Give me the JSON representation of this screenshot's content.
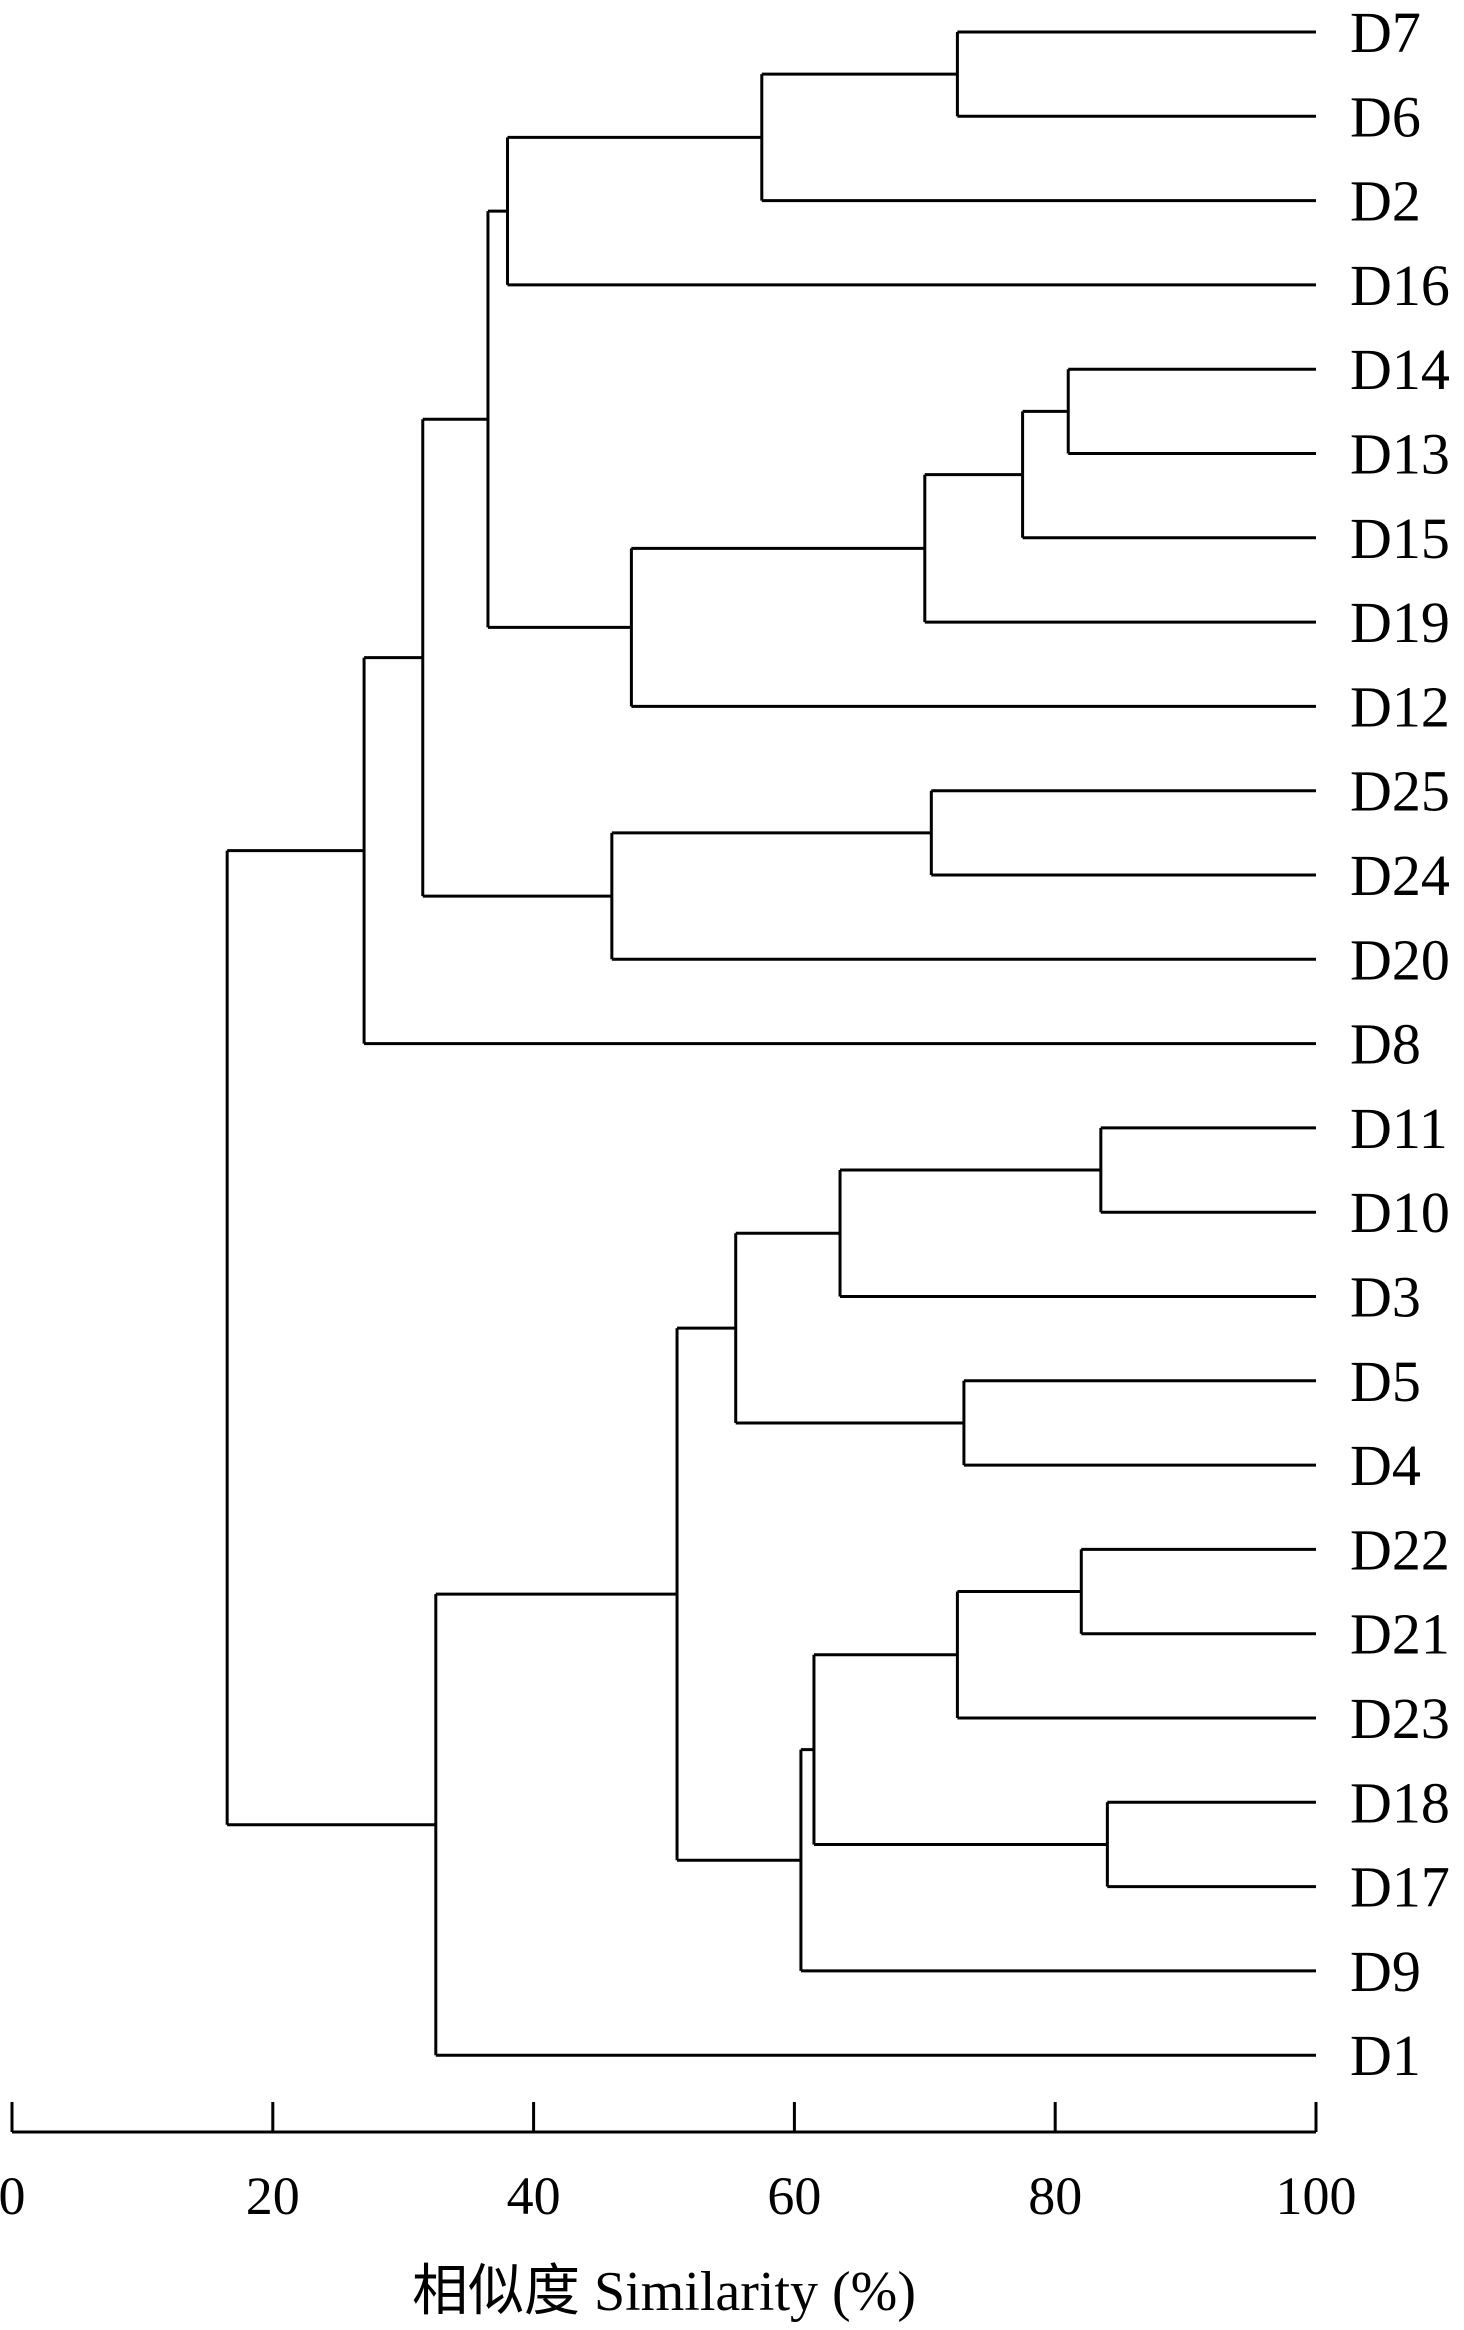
{
  "chart_data": {
    "type": "dendrogram",
    "orientation": "horizontal",
    "leaves": [
      "D7",
      "D6",
      "D2",
      "D16",
      "D14",
      "D13",
      "D15",
      "D19",
      "D12",
      "D25",
      "D24",
      "D20",
      "D8",
      "D11",
      "D10",
      "D3",
      "D5",
      "D4",
      "D22",
      "D21",
      "D23",
      "D18",
      "D17",
      "D9",
      "D1"
    ],
    "merges": [
      {
        "id": "m1",
        "children": [
          "D7",
          "D6"
        ],
        "similarity": 72.5
      },
      {
        "id": "m2",
        "children": [
          "m1",
          "D2"
        ],
        "similarity": 57.5
      },
      {
        "id": "m3",
        "children": [
          "m2",
          "D16"
        ],
        "similarity": 38
      },
      {
        "id": "m4",
        "children": [
          "D14",
          "D13"
        ],
        "similarity": 81
      },
      {
        "id": "m5",
        "children": [
          "m4",
          "D15"
        ],
        "similarity": 77.5
      },
      {
        "id": "m6",
        "children": [
          "m5",
          "D19"
        ],
        "similarity": 70
      },
      {
        "id": "m7",
        "children": [
          "m6",
          "D12"
        ],
        "similarity": 47.5
      },
      {
        "id": "m8",
        "children": [
          "m3",
          "m7"
        ],
        "similarity": 36.5
      },
      {
        "id": "m9",
        "children": [
          "D25",
          "D24"
        ],
        "similarity": 70.5
      },
      {
        "id": "m10",
        "children": [
          "m9",
          "D20"
        ],
        "similarity": 46
      },
      {
        "id": "m11",
        "children": [
          "m8",
          "m10"
        ],
        "similarity": 31.5
      },
      {
        "id": "m12",
        "children": [
          "m11",
          "D8"
        ],
        "similarity": 27
      },
      {
        "id": "m13",
        "children": [
          "D11",
          "D10"
        ],
        "similarity": 83.5
      },
      {
        "id": "m14",
        "children": [
          "m13",
          "D3"
        ],
        "similarity": 63.5
      },
      {
        "id": "m15",
        "children": [
          "D5",
          "D4"
        ],
        "similarity": 73
      },
      {
        "id": "m16",
        "children": [
          "m14",
          "m15"
        ],
        "similarity": 55.5
      },
      {
        "id": "m17",
        "children": [
          "D22",
          "D21"
        ],
        "similarity": 82
      },
      {
        "id": "m18",
        "children": [
          "m17",
          "D23"
        ],
        "similarity": 72.5
      },
      {
        "id": "m19",
        "children": [
          "D18",
          "D17"
        ],
        "similarity": 84
      },
      {
        "id": "m20",
        "children": [
          "m18",
          "m19"
        ],
        "similarity": 61.5
      },
      {
        "id": "m21",
        "children": [
          "m20",
          "D9"
        ],
        "similarity": 60.5
      },
      {
        "id": "m22",
        "children": [
          "m16",
          "m21"
        ],
        "similarity": 51
      },
      {
        "id": "m23",
        "children": [
          "m22",
          "D1"
        ],
        "similarity": 32.5
      },
      {
        "id": "m24",
        "children": [
          "m12",
          "m23"
        ],
        "similarity": 16.5
      }
    ],
    "xlim": [
      0,
      100
    ],
    "xticks": [
      0,
      20,
      40,
      60,
      80,
      100
    ],
    "xtick_labels": [
      "0",
      "20",
      "40",
      "60",
      "80",
      "100"
    ],
    "xlabel": "相似度 Similarity (%)",
    "grid": false
  }
}
